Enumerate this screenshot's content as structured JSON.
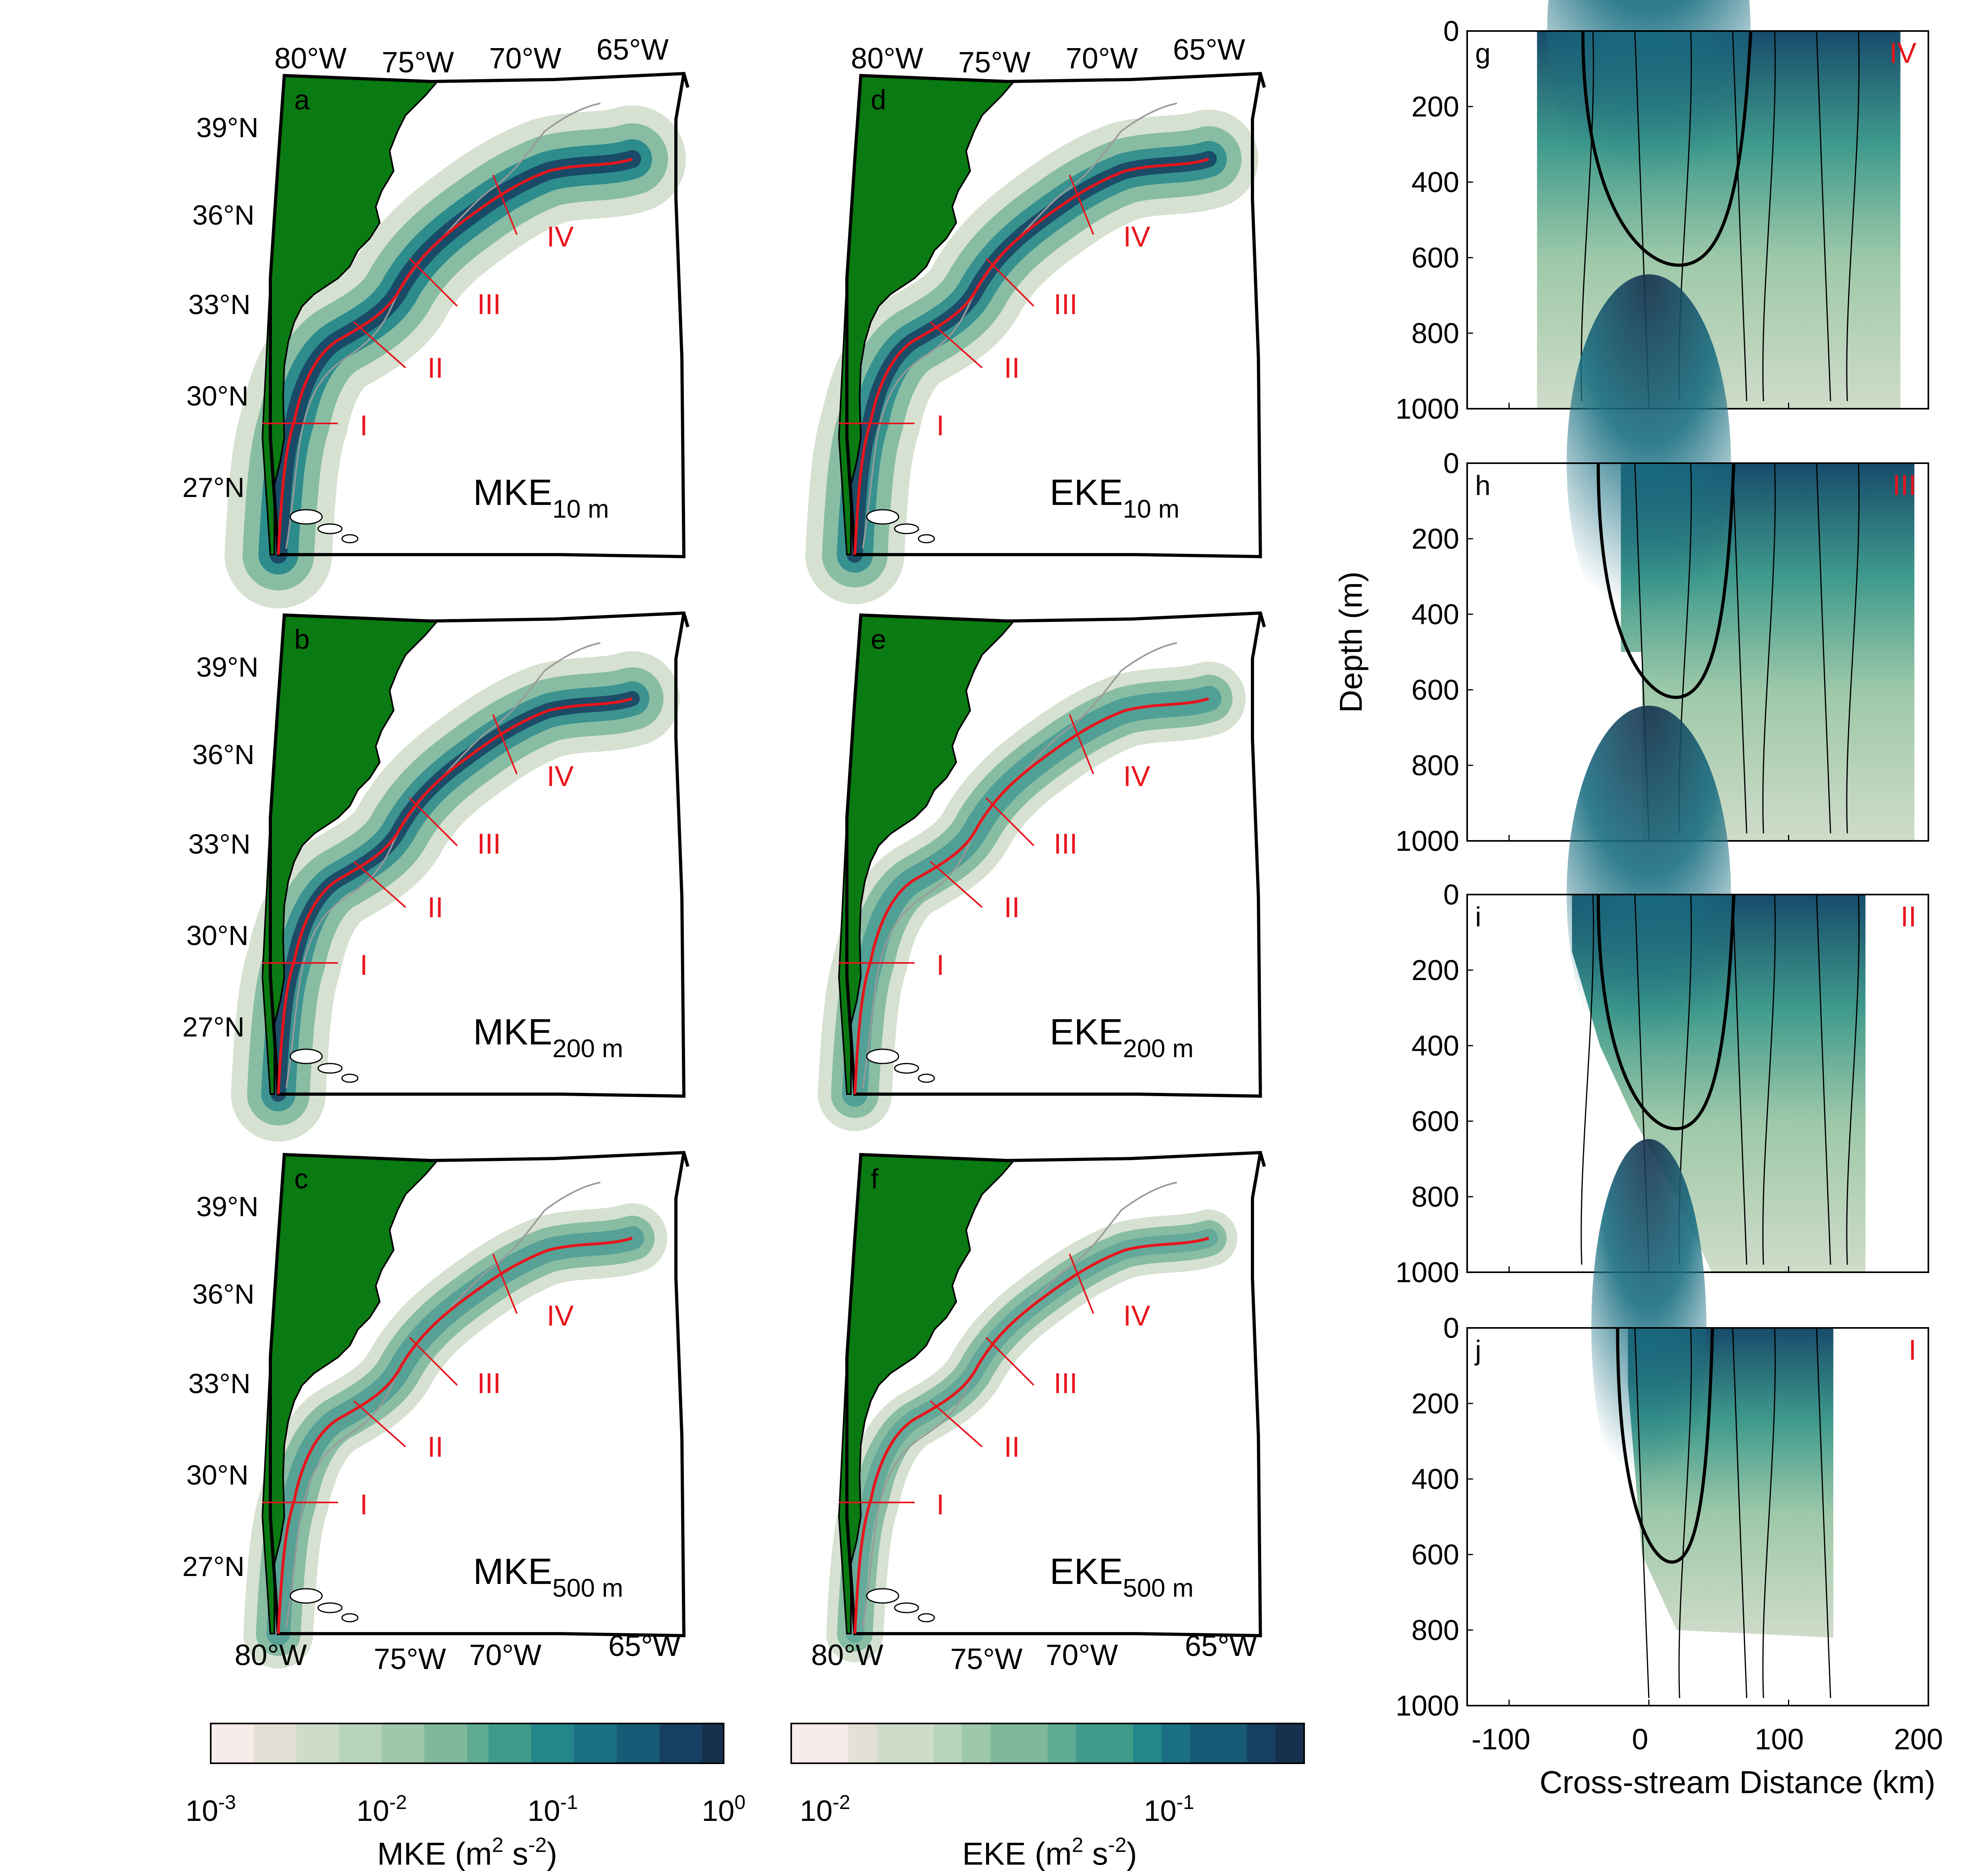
{
  "chart_data": [
    {
      "type": "map",
      "panel": "a",
      "quantity": "MKE",
      "depth_label": "10 m",
      "lon_ticks_top": [
        "80°W",
        "75°W",
        "70°W",
        "65°W"
      ],
      "lat_ticks": [
        "39°N",
        "36°N",
        "33°N",
        "30°N",
        "27°N"
      ],
      "sections": [
        "I",
        "II",
        "III",
        "IV"
      ]
    },
    {
      "type": "map",
      "panel": "b",
      "quantity": "MKE",
      "depth_label": "200 m",
      "lat_ticks": [
        "39°N",
        "36°N",
        "33°N",
        "30°N",
        "27°N"
      ],
      "sections": [
        "I",
        "II",
        "III",
        "IV"
      ]
    },
    {
      "type": "map",
      "panel": "c",
      "quantity": "MKE",
      "depth_label": "500 m",
      "lon_ticks_bottom": [
        "80°W",
        "75°W",
        "70°W",
        "65°W"
      ],
      "lat_ticks": [
        "39°N",
        "36°N",
        "33°N",
        "30°N",
        "27°N"
      ],
      "sections": [
        "I",
        "II",
        "III",
        "IV"
      ]
    },
    {
      "type": "map",
      "panel": "d",
      "quantity": "EKE",
      "depth_label": "10 m",
      "lon_ticks_top": [
        "80°W",
        "75°W",
        "70°W",
        "65°W"
      ],
      "sections": [
        "I",
        "II",
        "III",
        "IV"
      ]
    },
    {
      "type": "map",
      "panel": "e",
      "quantity": "EKE",
      "depth_label": "200 m",
      "sections": [
        "I",
        "II",
        "III",
        "IV"
      ]
    },
    {
      "type": "map",
      "panel": "f",
      "quantity": "EKE",
      "depth_label": "500 m",
      "lon_ticks_bottom": [
        "80°W",
        "75°W",
        "70°W",
        "65°W"
      ],
      "sections": [
        "I",
        "II",
        "III",
        "IV"
      ]
    },
    {
      "type": "heatmap",
      "panel": "g",
      "section": "IV",
      "xlim": [
        -130,
        200
      ],
      "ylim": [
        1000,
        0
      ],
      "data_x_range": [
        -80,
        180
      ],
      "ylabel": "",
      "yticks": [
        "0",
        "200",
        "400",
        "600",
        "800",
        "1000"
      ]
    },
    {
      "type": "heatmap",
      "panel": "h",
      "section": "III",
      "xlim": [
        -130,
        200
      ],
      "ylim": [
        1000,
        0
      ],
      "data_x_range": [
        -20,
        190
      ],
      "ylabel": "Depth (m)",
      "yticks": [
        "0",
        "200",
        "400",
        "600",
        "800",
        "1000"
      ]
    },
    {
      "type": "heatmap",
      "panel": "i",
      "section": "II",
      "xlim": [
        -130,
        200
      ],
      "ylim": [
        1000,
        0
      ],
      "data_x_range": [
        -55,
        155
      ],
      "ylabel": "",
      "yticks": [
        "0",
        "200",
        "400",
        "600",
        "800",
        "1000"
      ]
    },
    {
      "type": "heatmap",
      "panel": "j",
      "section": "I",
      "xlim": [
        -130,
        200
      ],
      "ylim": [
        1000,
        0
      ],
      "data_x_range": [
        -15,
        132
      ],
      "ylabel": "",
      "yticks": [
        "0",
        "200",
        "400",
        "600",
        "800",
        "1000"
      ],
      "xticks": [
        "-100",
        "0",
        "100",
        "200"
      ],
      "xlabel": "Cross-stream Distance (km)"
    },
    {
      "type": "colorbar",
      "quantity": "MKE",
      "scale": "log",
      "range": [
        0.001,
        1
      ],
      "tick_labels": [
        {
          "base": "10",
          "exp": "-3"
        },
        {
          "base": "10",
          "exp": "-2"
        },
        {
          "base": "10",
          "exp": "-1"
        },
        {
          "base": "10",
          "exp": "0"
        }
      ],
      "label": {
        "pre": "MKE (m",
        "e1": "2",
        "mid": " s",
        "e2": "-2",
        "post": ")"
      }
    },
    {
      "type": "colorbar",
      "quantity": "EKE",
      "scale": "log",
      "range": [
        0.008,
        0.25
      ],
      "tick_labels": [
        {
          "base": "10",
          "exp": "-2"
        },
        {
          "base": "10",
          "exp": "-1"
        }
      ],
      "label": {
        "pre": "EKE (m",
        "e1": "2",
        "mid": " s",
        "e2": "-2",
        "post": ")"
      }
    }
  ],
  "colors": {
    "land": "#0a7a12",
    "section_line": "#e8141c",
    "section_label": "#e8141c",
    "colormap": [
      "#f6ece9",
      "#e4e0d6",
      "#cfdcc9",
      "#b7d3b9",
      "#9dc8a9",
      "#7fb99d",
      "#5fab92",
      "#3f9a8c",
      "#24868a",
      "#1a6f82",
      "#175a75",
      "#163f62",
      "#16304d"
    ]
  }
}
